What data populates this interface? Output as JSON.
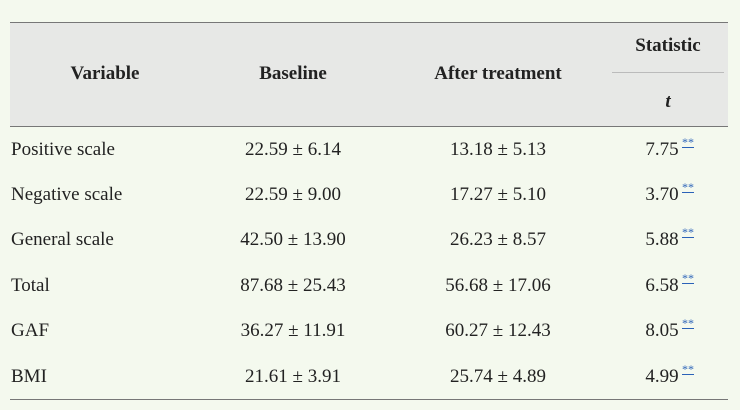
{
  "table": {
    "header": {
      "variable": "Variable",
      "baseline": "Baseline",
      "after": "After treatment",
      "statistic": "Statistic",
      "statistic_sub": "t"
    },
    "rows": [
      [
        "Positive scale",
        "22.59 ± 6.14",
        "13.18 ± 5.13",
        "7.75",
        "**"
      ],
      [
        "Negative scale",
        "22.59 ± 9.00",
        "17.27 ± 5.10",
        "3.70",
        "**"
      ],
      [
        "General scale",
        "42.50 ± 13.90",
        "26.23 ± 8.57",
        "5.88",
        "**"
      ],
      [
        "Total",
        "87.68 ± 25.43",
        "56.68 ± 17.06",
        "6.58",
        "**"
      ],
      [
        "GAF",
        "36.27 ± 11.91",
        "60.27 ± 12.43",
        "8.05",
        "**"
      ],
      [
        "BMI",
        "21.61 ± 3.91",
        "25.74 ± 4.89",
        "4.99",
        "**"
      ]
    ]
  }
}
